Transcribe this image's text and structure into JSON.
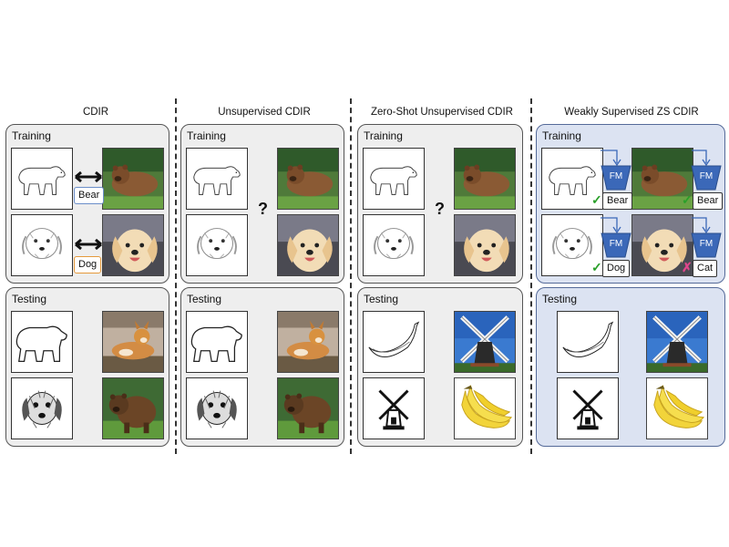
{
  "columns": [
    {
      "title": "CDIR"
    },
    {
      "title": "Unsupervised CDIR"
    },
    {
      "title": "Zero-Shot Unsupervised CDIR"
    },
    {
      "title": "Weakly Supervised ZS CDIR"
    }
  ],
  "panel_labels": {
    "training": "Training",
    "testing": "Testing"
  },
  "labels": {
    "bear": "Bear",
    "dog": "Dog",
    "cat": "Cat",
    "fm": "FM",
    "question": "?"
  },
  "marks": {
    "check": "✓",
    "cross": "✗"
  },
  "colors": {
    "panel_gray": "#eeeeee",
    "panel_blue": "#dce3f2",
    "fm_blue": "#3b68b8",
    "check_green": "#2aa02a",
    "cross_pink": "#e0468c"
  },
  "icons": [
    "polar-bear-sketch-icon",
    "dog-sketch-icon",
    "bear-photo-icon",
    "dog-photo-icon",
    "corgi-photo-icon",
    "banana-sketch-icon",
    "windmill-sketch-icon",
    "windmill-photo-icon",
    "banana-photo-icon",
    "fm-encoder-icon"
  ]
}
